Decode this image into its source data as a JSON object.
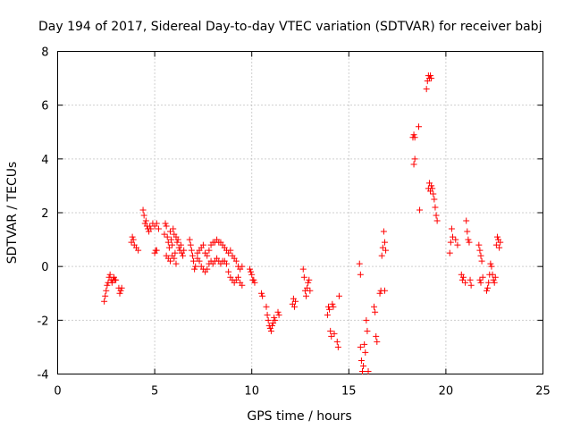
{
  "chart_data": {
    "type": "scatter",
    "title": "Day 194 of 2017, Sidereal Day-to-day VTEC variation (SDTVAR) for receiver babj",
    "xlabel": "GPS time / hours",
    "ylabel": "SDTVAR / TECUs",
    "xlim": [
      0,
      25
    ],
    "ylim": [
      -4,
      8
    ],
    "xticks": [
      0,
      5,
      10,
      15,
      20,
      25
    ],
    "yticks": [
      -4,
      -2,
      0,
      2,
      4,
      6,
      8
    ],
    "xtick_labels": [
      "0",
      "5",
      "10",
      "15",
      "20",
      "25"
    ],
    "ytick_labels": [
      "-4",
      "-2",
      "0",
      "2",
      "4",
      "6",
      "8"
    ],
    "grid": true,
    "marker": "+",
    "color": "#ff0000",
    "series": [
      {
        "name": "SDTVAR",
        "points": [
          [
            2.4,
            -1.3
          ],
          [
            2.45,
            -1.1
          ],
          [
            2.5,
            -0.9
          ],
          [
            2.55,
            -0.7
          ],
          [
            2.6,
            -0.6
          ],
          [
            2.65,
            -0.4
          ],
          [
            2.7,
            -0.3
          ],
          [
            2.75,
            -0.5
          ],
          [
            2.8,
            -0.6
          ],
          [
            2.85,
            -0.5
          ],
          [
            2.9,
            -0.4
          ],
          [
            2.95,
            -0.5
          ],
          [
            3.0,
            -0.5
          ],
          [
            3.15,
            -0.8
          ],
          [
            3.2,
            -1.0
          ],
          [
            3.25,
            -0.9
          ],
          [
            3.3,
            -0.8
          ],
          [
            3.8,
            0.9
          ],
          [
            3.85,
            1.1
          ],
          [
            3.9,
            1.0
          ],
          [
            3.95,
            0.8
          ],
          [
            4.05,
            0.7
          ],
          [
            4.15,
            0.6
          ],
          [
            4.4,
            2.1
          ],
          [
            4.45,
            1.9
          ],
          [
            4.5,
            1.6
          ],
          [
            4.55,
            1.7
          ],
          [
            4.6,
            1.5
          ],
          [
            4.65,
            1.4
          ],
          [
            4.7,
            1.3
          ],
          [
            4.75,
            1.5
          ],
          [
            4.8,
            1.4
          ],
          [
            4.9,
            1.6
          ],
          [
            5.0,
            1.5
          ],
          [
            5.1,
            1.6
          ],
          [
            5.2,
            1.4
          ],
          [
            5.0,
            0.5
          ],
          [
            5.05,
            0.6
          ],
          [
            5.1,
            0.6
          ],
          [
            5.5,
            1.2
          ],
          [
            5.55,
            1.6
          ],
          [
            5.6,
            1.5
          ],
          [
            5.65,
            1.1
          ],
          [
            5.7,
            0.9
          ],
          [
            5.75,
            0.7
          ],
          [
            5.8,
            1.3
          ],
          [
            5.85,
            1.0
          ],
          [
            5.9,
            0.8
          ],
          [
            5.95,
            1.4
          ],
          [
            6.0,
            1.2
          ],
          [
            6.05,
            0.5
          ],
          [
            6.1,
            1.1
          ],
          [
            6.15,
            0.9
          ],
          [
            6.2,
            1.0
          ],
          [
            6.25,
            0.7
          ],
          [
            6.3,
            0.6
          ],
          [
            6.35,
            0.8
          ],
          [
            6.4,
            0.5
          ],
          [
            6.45,
            0.4
          ],
          [
            6.5,
            0.6
          ],
          [
            5.6,
            0.4
          ],
          [
            5.7,
            0.3
          ],
          [
            5.8,
            0.2
          ],
          [
            5.9,
            0.4
          ],
          [
            6.0,
            0.3
          ],
          [
            6.1,
            0.1
          ],
          [
            6.8,
            1.0
          ],
          [
            6.85,
            0.8
          ],
          [
            6.9,
            0.6
          ],
          [
            6.95,
            0.4
          ],
          [
            7.0,
            0.2
          ],
          [
            7.05,
            -0.1
          ],
          [
            7.1,
            0.0
          ],
          [
            7.2,
            0.3
          ],
          [
            7.3,
            0.2
          ],
          [
            7.4,
            0.0
          ],
          [
            7.5,
            -0.1
          ],
          [
            7.6,
            -0.2
          ],
          [
            7.7,
            -0.1
          ],
          [
            7.2,
            0.5
          ],
          [
            7.3,
            0.6
          ],
          [
            7.4,
            0.7
          ],
          [
            7.5,
            0.8
          ],
          [
            7.6,
            0.5
          ],
          [
            7.7,
            0.4
          ],
          [
            7.8,
            0.6
          ],
          [
            7.9,
            0.8
          ],
          [
            8.0,
            0.9
          ],
          [
            8.1,
            0.9
          ],
          [
            8.2,
            1.0
          ],
          [
            8.3,
            0.9
          ],
          [
            8.4,
            0.9
          ],
          [
            8.5,
            0.8
          ],
          [
            8.6,
            0.7
          ],
          [
            8.7,
            0.6
          ],
          [
            7.8,
            0.1
          ],
          [
            7.9,
            0.2
          ],
          [
            8.0,
            0.1
          ],
          [
            8.1,
            0.2
          ],
          [
            8.2,
            0.3
          ],
          [
            8.3,
            0.2
          ],
          [
            8.4,
            0.1
          ],
          [
            8.5,
            0.2
          ],
          [
            8.6,
            0.2
          ],
          [
            8.7,
            0.1
          ],
          [
            8.8,
            0.5
          ],
          [
            8.9,
            0.6
          ],
          [
            9.0,
            0.4
          ],
          [
            9.1,
            0.3
          ],
          [
            9.2,
            0.2
          ],
          [
            9.3,
            0.0
          ],
          [
            9.4,
            -0.1
          ],
          [
            9.5,
            0.0
          ],
          [
            8.8,
            -0.2
          ],
          [
            8.9,
            -0.4
          ],
          [
            9.0,
            -0.5
          ],
          [
            9.1,
            -0.6
          ],
          [
            9.2,
            -0.5
          ],
          [
            9.3,
            -0.4
          ],
          [
            9.4,
            -0.6
          ],
          [
            9.5,
            -0.7
          ],
          [
            9.9,
            -0.1
          ],
          [
            9.95,
            -0.2
          ],
          [
            10.0,
            -0.3
          ],
          [
            10.05,
            -0.5
          ],
          [
            10.1,
            -0.5
          ],
          [
            10.15,
            -0.6
          ],
          [
            10.5,
            -1.0
          ],
          [
            10.55,
            -1.1
          ],
          [
            10.75,
            -1.5
          ],
          [
            10.8,
            -1.8
          ],
          [
            10.85,
            -2.0
          ],
          [
            10.9,
            -2.2
          ],
          [
            10.95,
            -2.3
          ],
          [
            11.0,
            -2.4
          ],
          [
            11.05,
            -2.2
          ],
          [
            11.1,
            -2.1
          ],
          [
            11.15,
            -1.9
          ],
          [
            11.2,
            -2.0
          ],
          [
            11.35,
            -1.7
          ],
          [
            11.4,
            -1.8
          ],
          [
            12.1,
            -1.4
          ],
          [
            12.15,
            -1.2
          ],
          [
            12.2,
            -1.5
          ],
          [
            12.25,
            -1.3
          ],
          [
            12.65,
            -0.1
          ],
          [
            12.7,
            -0.4
          ],
          [
            12.75,
            -0.9
          ],
          [
            12.8,
            -1.1
          ],
          [
            12.85,
            -0.8
          ],
          [
            12.9,
            -0.6
          ],
          [
            12.95,
            -0.5
          ],
          [
            13.0,
            -0.9
          ],
          [
            13.9,
            -1.8
          ],
          [
            13.95,
            -1.5
          ],
          [
            14.0,
            -1.6
          ],
          [
            14.05,
            -2.4
          ],
          [
            14.1,
            -2.6
          ],
          [
            14.15,
            -1.4
          ],
          [
            14.2,
            -1.5
          ],
          [
            14.25,
            -2.5
          ],
          [
            14.4,
            -2.8
          ],
          [
            14.45,
            -3.0
          ],
          [
            14.5,
            -1.1
          ],
          [
            15.55,
            0.1
          ],
          [
            15.6,
            -0.3
          ],
          [
            15.6,
            -3.0
          ],
          [
            15.65,
            -3.5
          ],
          [
            15.7,
            -3.9
          ],
          [
            15.75,
            -3.7
          ],
          [
            15.8,
            -2.9
          ],
          [
            15.85,
            -3.2
          ],
          [
            15.9,
            -2.0
          ],
          [
            15.95,
            -2.4
          ],
          [
            16.0,
            -3.9
          ],
          [
            16.3,
            -1.5
          ],
          [
            16.35,
            -1.7
          ],
          [
            16.4,
            -2.6
          ],
          [
            16.45,
            -2.8
          ],
          [
            16.6,
            -1.0
          ],
          [
            16.65,
            -0.9
          ],
          [
            16.7,
            0.4
          ],
          [
            16.75,
            0.7
          ],
          [
            16.8,
            1.3
          ],
          [
            16.85,
            0.9
          ],
          [
            16.9,
            0.6
          ],
          [
            16.85,
            -0.9
          ],
          [
            18.3,
            4.8
          ],
          [
            18.35,
            4.9
          ],
          [
            18.4,
            4.8
          ],
          [
            18.35,
            3.8
          ],
          [
            18.4,
            4.0
          ],
          [
            18.6,
            5.2
          ],
          [
            18.65,
            2.1
          ],
          [
            19.0,
            6.6
          ],
          [
            19.05,
            6.9
          ],
          [
            19.1,
            7.1
          ],
          [
            19.15,
            7.0
          ],
          [
            19.2,
            7.1
          ],
          [
            19.25,
            7.0
          ],
          [
            19.1,
            2.9
          ],
          [
            19.15,
            3.1
          ],
          [
            19.2,
            2.8
          ],
          [
            19.25,
            3.0
          ],
          [
            19.3,
            2.9
          ],
          [
            19.35,
            2.7
          ],
          [
            19.4,
            2.5
          ],
          [
            19.45,
            2.2
          ],
          [
            19.5,
            1.9
          ],
          [
            19.55,
            1.7
          ],
          [
            20.2,
            0.5
          ],
          [
            20.25,
            0.9
          ],
          [
            20.3,
            1.4
          ],
          [
            20.35,
            1.1
          ],
          [
            20.5,
            1.0
          ],
          [
            20.6,
            0.8
          ],
          [
            20.8,
            -0.3
          ],
          [
            20.85,
            -0.5
          ],
          [
            20.9,
            -0.4
          ],
          [
            21.0,
            -0.6
          ],
          [
            21.05,
            1.7
          ],
          [
            21.1,
            1.3
          ],
          [
            21.15,
            1.0
          ],
          [
            21.2,
            0.9
          ],
          [
            21.25,
            -0.5
          ],
          [
            21.3,
            -0.7
          ],
          [
            21.7,
            0.8
          ],
          [
            21.75,
            0.6
          ],
          [
            21.8,
            0.4
          ],
          [
            21.85,
            0.2
          ],
          [
            21.75,
            -0.5
          ],
          [
            21.8,
            -0.6
          ],
          [
            21.9,
            -0.4
          ],
          [
            22.1,
            -0.9
          ],
          [
            22.15,
            -0.8
          ],
          [
            22.2,
            -0.6
          ],
          [
            22.25,
            -0.3
          ],
          [
            22.3,
            0.1
          ],
          [
            22.35,
            0.0
          ],
          [
            22.4,
            -0.3
          ],
          [
            22.45,
            -0.5
          ],
          [
            22.5,
            -0.6
          ],
          [
            22.55,
            -0.4
          ],
          [
            22.6,
            0.8
          ],
          [
            22.65,
            1.1
          ],
          [
            22.7,
            1.0
          ],
          [
            22.75,
            0.7
          ],
          [
            22.8,
            0.9
          ]
        ]
      }
    ]
  }
}
